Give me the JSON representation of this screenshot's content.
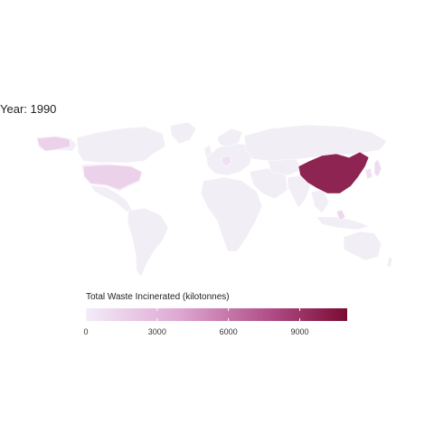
{
  "map": {
    "title": "Year: 1990",
    "colors": {
      "no_data": "#f1eef6",
      "low": "#f3e8f7",
      "high": "#7a0b33"
    }
  },
  "legend": {
    "title": "Total Waste Incinerated (kilotonnes)",
    "min": 0,
    "max": 11000,
    "ticks": [
      "0",
      "3000",
      "6000",
      "9000"
    ],
    "tick_values": [
      0,
      3000,
      6000,
      9000
    ]
  },
  "countries": [
    {
      "name": "China",
      "value": 9800
    },
    {
      "name": "United States",
      "value": 1500
    },
    {
      "name": "Japan",
      "value": 900
    },
    {
      "name": "Philippines",
      "value": 1100
    },
    {
      "name": "Germany",
      "value": 700
    },
    {
      "name": "Korea",
      "value": 600
    }
  ]
}
